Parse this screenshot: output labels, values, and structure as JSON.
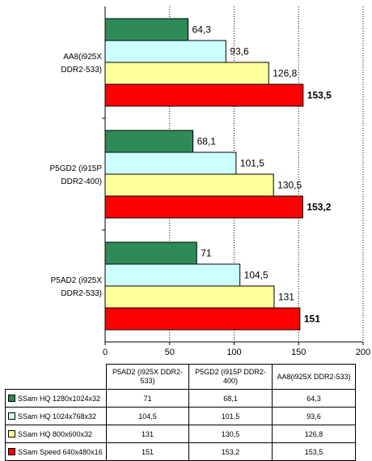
{
  "chart_data": {
    "type": "bar",
    "orientation": "horizontal",
    "categories": [
      "AA8(i925X DDR2-533)",
      "P5GD2 (i915P DDR2-400)",
      "P5AD2 (i925X DDR2-533)"
    ],
    "category_label_lines": [
      [
        "AA8(i925X",
        "DDR2-533)"
      ],
      [
        "P5GD2 (i915P",
        "DDR2-400)"
      ],
      [
        "P5AD2 (i925X",
        "DDR2-533)"
      ]
    ],
    "series": [
      {
        "name": "SSam  HQ  1280x1024x32",
        "color": "#2e8b57",
        "values": [
          64.3,
          68.1,
          71
        ],
        "labels": [
          "64,3",
          "68,1",
          "71"
        ]
      },
      {
        "name": "SSam  HQ  1024x768x32",
        "color": "#ccffff",
        "values": [
          93.6,
          101.5,
          104.5
        ],
        "labels": [
          "93,6",
          "101,5",
          "104,5"
        ]
      },
      {
        "name": "SSam  HQ  800x600x32",
        "color": "#ffff99",
        "values": [
          126.8,
          130.5,
          131
        ],
        "labels": [
          "126,8",
          "130,5",
          "131"
        ]
      },
      {
        "name": "SSam  Speed  640x480x16",
        "color": "#ff0000",
        "values": [
          153.5,
          153.2,
          151
        ],
        "labels": [
          "153,5",
          "153,2",
          "151"
        ]
      }
    ],
    "bold_series": 3,
    "xlim": [
      0,
      200
    ],
    "xticks": [
      "0",
      "50",
      "100",
      "150",
      "200"
    ],
    "grid": true,
    "table": {
      "columns": [
        "P5AD2 (i925X DDR2-533)",
        "P5GD2 (i915P DDR2-400)",
        "AA8(i925X DDR2-533)"
      ],
      "column_lines": [
        [
          "P5AD2 (i925X DDR2-",
          "533)"
        ],
        [
          "P5GD2 (i915P DDR2-",
          "400)"
        ],
        [
          "AA8(i925X DDR2-533)"
        ]
      ],
      "rows": [
        {
          "series": "SSam  HQ  1280x1024x32",
          "color": "#2e8b57",
          "cells": [
            "71",
            "68,1",
            "64,3"
          ]
        },
        {
          "series": "SSam  HQ  1024x768x32",
          "color": "#ccffff",
          "cells": [
            "104,5",
            "101,5",
            "93,6"
          ]
        },
        {
          "series": "SSam  HQ  800x600x32",
          "color": "#ffff99",
          "cells": [
            "131",
            "130,5",
            "126,8"
          ]
        },
        {
          "series": "SSam  Speed  640x480x16",
          "color": "#ff0000",
          "cells": [
            "151",
            "153,2",
            "153,5"
          ]
        }
      ]
    }
  }
}
